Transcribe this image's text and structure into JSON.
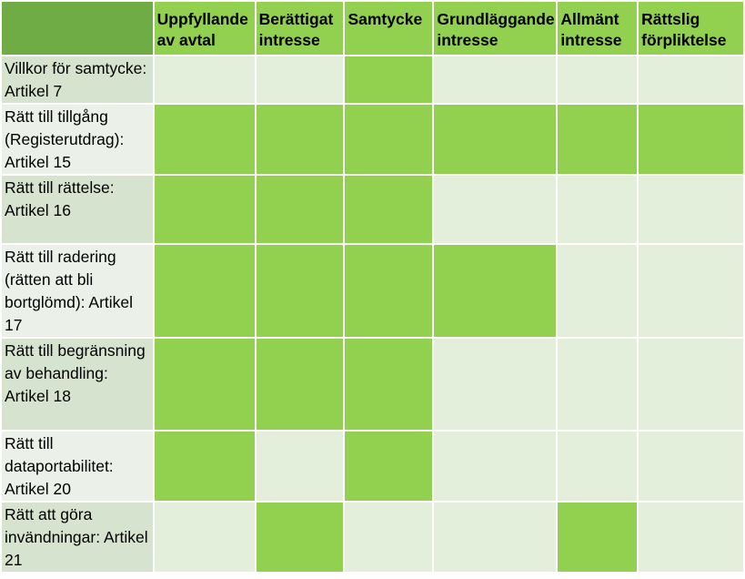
{
  "colors": {
    "header_bg": "#92d050",
    "header_corner_bg": "#6fac46",
    "row_label_dark": "#d6e3cf",
    "row_label_light": "#ebf1e9",
    "cell_light": "#e3eedb",
    "cell_green": "#92d050",
    "grid_line": "#ffffff",
    "text": "#000000"
  },
  "table": {
    "columns": [
      "Uppfyllande av avtal",
      "Berättigat intresse",
      "Samtycke",
      "Grundläggande intresse",
      "Allmänt intresse",
      "Rättslig förpliktelse"
    ],
    "rows": [
      {
        "label": "Villkor för samtycke: Artikel 7",
        "cells": [
          false,
          false,
          true,
          false,
          false,
          false
        ]
      },
      {
        "label": "Rätt till tillgång (Registerutdrag): Artikel 15",
        "cells": [
          true,
          true,
          true,
          true,
          true,
          true
        ]
      },
      {
        "label": "Rätt till rättelse: Artikel 16",
        "cells": [
          true,
          true,
          true,
          false,
          false,
          false
        ]
      },
      {
        "label": "Rätt till radering (rätten att bli bortglömd): Artikel 17",
        "cells": [
          true,
          true,
          true,
          true,
          false,
          false
        ]
      },
      {
        "label": "Rätt till begränsning av behandling: Artikel 18",
        "cells": [
          true,
          true,
          true,
          false,
          false,
          false
        ]
      },
      {
        "label": "Rätt till dataportabilitet: Artikel 20",
        "cells": [
          true,
          false,
          true,
          false,
          false,
          false
        ]
      },
      {
        "label": "Rätt att göra invändningar: Artikel 21",
        "cells": [
          false,
          true,
          false,
          false,
          true,
          false
        ]
      }
    ]
  }
}
